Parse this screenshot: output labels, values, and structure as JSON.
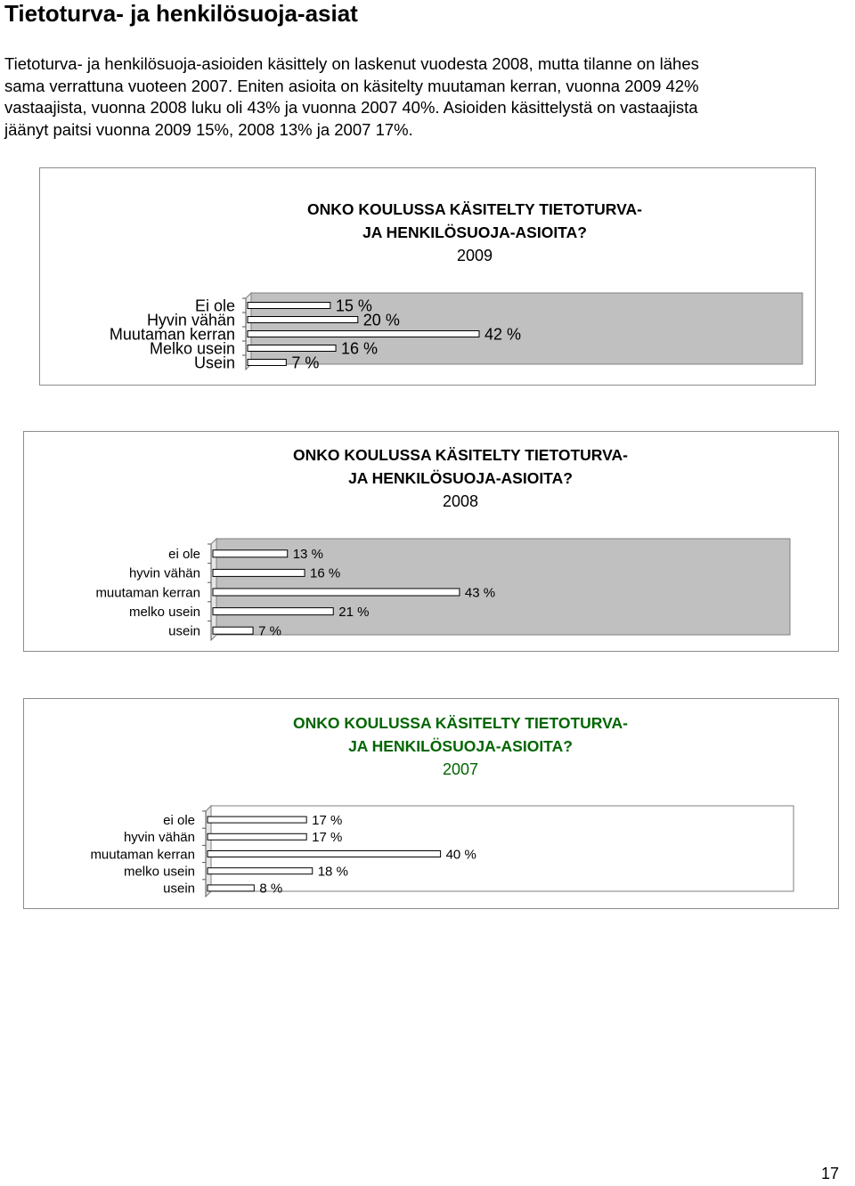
{
  "document": {
    "heading": "Tietoturva- ja henkilösuoja-asiat",
    "intro_lines": [
      "Tietoturva- ja henkilösuoja-asioiden käsittely on laskenut vuodesta 2008, mutta tilanne on lähes",
      "sama verrattuna vuoteen 2007. Eniten asioita on käsitelty muutaman kerran, vuonna 2009 42%",
      "vastaajista, vuonna 2008 luku oli 43% ja vuonna 2007 40%. Asioiden käsittelystä on vastaajista",
      "jäänyt paitsi vuonna 2009 15%, 2008 13% ja 2007 17%."
    ],
    "page_number": "17"
  },
  "chart_data": [
    {
      "type": "bar",
      "orientation": "horizontal",
      "title_lines": [
        "ONKO KOULUSSA KÄSITELTY TIETOTURVA-",
        "JA HENKILÖSUOJA-ASIOITA?"
      ],
      "year": "2009",
      "categories": [
        "Ei ole",
        "Hyvin vähän",
        "Muutaman kerran",
        "Melko usein",
        "Usein"
      ],
      "values": [
        15,
        20,
        42,
        16,
        7
      ],
      "value_labels": [
        "15 %",
        "20 %",
        "42 %",
        "16 %",
        "7 %"
      ],
      "xlim": [
        0,
        100
      ],
      "grid": false,
      "legend": "none",
      "colors": {
        "bar": "#ffffff",
        "plot_bg": "#c0c0c0",
        "plot_border": "#808080"
      },
      "title_color": "#000000"
    },
    {
      "type": "bar",
      "orientation": "horizontal",
      "title_lines": [
        "ONKO KOULUSSA KÄSITELTY TIETOTURVA-",
        "JA HENKILÖSUOJA-ASIOITA?"
      ],
      "year": "2008",
      "categories": [
        "ei ole",
        "hyvin vähän",
        "muutaman kerran",
        "melko usein",
        "usein"
      ],
      "values": [
        13,
        16,
        43,
        21,
        7
      ],
      "value_labels": [
        "13 %",
        "16 %",
        "43 %",
        "21 %",
        "7 %"
      ],
      "xlim": [
        0,
        100
      ],
      "grid": false,
      "legend": "none",
      "colors": {
        "bar": "#ffffff",
        "plot_bg": "#c0c0c0",
        "plot_border": "#808080"
      },
      "title_color": "#000000"
    },
    {
      "type": "bar",
      "orientation": "horizontal",
      "title_lines": [
        "ONKO KOULUSSA KÄSITELTY TIETOTURVA-",
        "JA HENKILÖSUOJA-ASIOITA?"
      ],
      "year": "2007",
      "categories": [
        "ei ole",
        "hyvin vähän",
        "muutaman kerran",
        "melko usein",
        "usein"
      ],
      "values": [
        17,
        17,
        40,
        18,
        8
      ],
      "value_labels": [
        "17 %",
        "17 %",
        "40 %",
        "18 %",
        "8 %"
      ],
      "xlim": [
        0,
        100
      ],
      "grid": false,
      "legend": "none",
      "colors": {
        "bar": "#ffffff",
        "plot_bg": "#ffffff",
        "plot_border": "#808080"
      },
      "title_color": "#006600"
    }
  ]
}
